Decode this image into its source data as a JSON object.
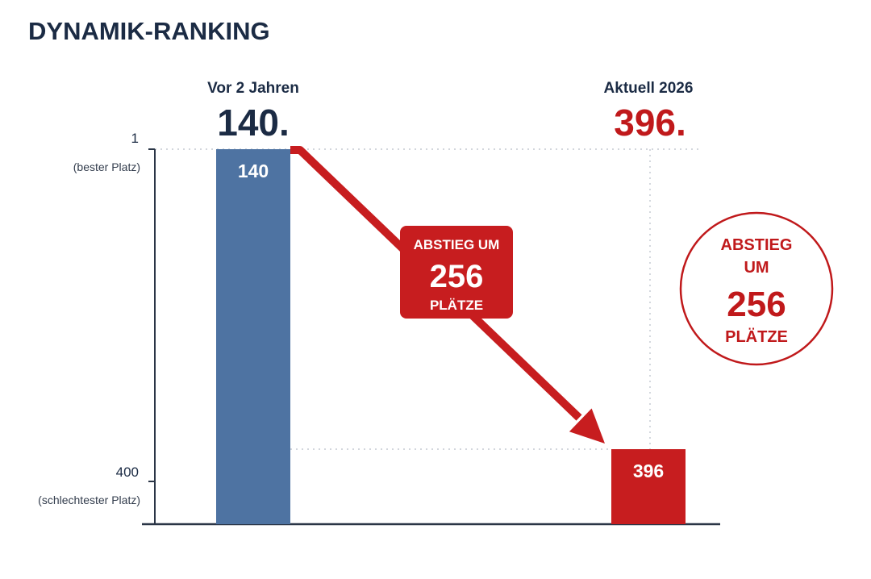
{
  "chart_data": {
    "type": "bar",
    "title": "DYNAMIK-RANKING",
    "categories": [
      "Vor 2 Jahren",
      "Aktuell 2026"
    ],
    "values": [
      140,
      396
    ],
    "value_headlines": [
      "140.",
      "396."
    ],
    "bar_labels": [
      "140",
      "396"
    ],
    "y_axis": {
      "reversed": true,
      "ylim": [
        1,
        400
      ],
      "ticks": [
        {
          "value": 1,
          "label": "1",
          "sub": "(bester Platz)"
        },
        {
          "value": 400,
          "label": "400",
          "sub": "(schlechtester Platz)"
        }
      ]
    },
    "colors": {
      "first": "#4e73a2",
      "second": "#c71d1f",
      "accent": "#c0191b",
      "text": "#1b2b44"
    },
    "annotations": {
      "arrow_box": {
        "line1": "ABSTIEG UM",
        "number": "256",
        "line3": "PLÄTZE"
      },
      "circle": {
        "line1": "ABSTIEG",
        "line2": "UM",
        "number": "256",
        "line4": "PLÄTZE"
      }
    }
  }
}
